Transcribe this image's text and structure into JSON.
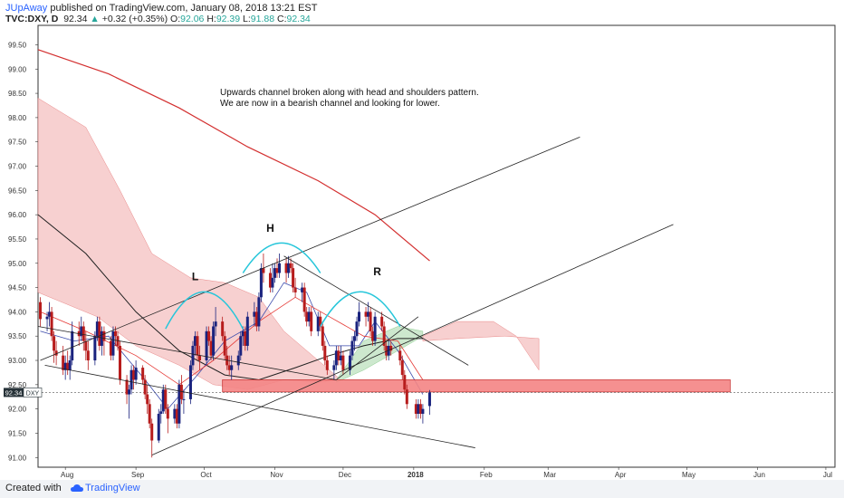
{
  "header": {
    "user": "JUpAway",
    "published_text": "published on TradingView.com, January 08, 2018 13:21 EST",
    "symbol": "TVC:DXY, D",
    "price": "92.34",
    "change": "+0.32 (+0.35%)",
    "o_label": "O:",
    "o_value": "92.06",
    "h_label": "H:",
    "h_value": "92.39",
    "l_label": "L:",
    "l_value": "91.88",
    "c_label": "C:",
    "c_value": "92.34"
  },
  "footer": {
    "created_with": "Created with",
    "brand": "TradingView"
  },
  "chart_data": {
    "type": "candlestick",
    "symbol": "TVC:DXY",
    "interval": "D",
    "price_label": "92.34",
    "price_tag": "DXY",
    "annotation": [
      "Upwards channel broken along with head and shoulders pattern.",
      "We are now in a bearish channel and looking for lower."
    ],
    "pattern_labels": [
      "L",
      "H",
      "R"
    ],
    "yticks": [
      "99.50",
      "99.00",
      "98.50",
      "98.00",
      "97.50",
      "97.00",
      "96.50",
      "96.00",
      "95.50",
      "95.00",
      "94.50",
      "94.00",
      "93.50",
      "93.00",
      "92.50",
      "92.00",
      "91.50",
      "91.00"
    ],
    "xticks": [
      "Aug",
      "Sep",
      "Oct",
      "Nov",
      "Dec",
      "2018",
      "Feb",
      "Mar",
      "Apr",
      "May",
      "Jun",
      "Jul"
    ],
    "ylim": [
      90.8,
      99.9
    ],
    "last_price": 92.34,
    "support_zone": [
      92.35,
      92.6
    ],
    "x_range": [
      "2017-07-20",
      "2018-07-05"
    ],
    "candles": [
      {
        "date": "2017-07-21",
        "o": 94.2,
        "h": 94.3,
        "l": 93.7,
        "c": 93.85
      },
      {
        "date": "2017-07-24",
        "o": 93.85,
        "h": 94.0,
        "l": 93.6,
        "c": 93.9
      },
      {
        "date": "2017-07-25",
        "o": 93.9,
        "h": 94.2,
        "l": 93.7,
        "c": 94.0
      },
      {
        "date": "2017-07-26",
        "o": 94.0,
        "h": 94.1,
        "l": 93.4,
        "c": 93.5
      },
      {
        "date": "2017-07-27",
        "o": 93.5,
        "h": 93.6,
        "l": 92.95,
        "c": 93.2
      },
      {
        "date": "2017-07-28",
        "o": 93.2,
        "h": 93.4,
        "l": 92.9,
        "c": 93.1
      },
      {
        "date": "2017-07-31",
        "o": 93.1,
        "h": 93.3,
        "l": 92.7,
        "c": 92.8
      },
      {
        "date": "2017-08-01",
        "o": 92.8,
        "h": 93.1,
        "l": 92.6,
        "c": 92.95
      },
      {
        "date": "2017-08-02",
        "o": 92.95,
        "h": 93.2,
        "l": 92.7,
        "c": 92.8
      },
      {
        "date": "2017-08-03",
        "o": 92.8,
        "h": 93.1,
        "l": 92.6,
        "c": 93.0
      },
      {
        "date": "2017-08-04",
        "o": 93.0,
        "h": 93.8,
        "l": 92.9,
        "c": 93.6
      },
      {
        "date": "2017-08-07",
        "o": 93.6,
        "h": 93.8,
        "l": 93.3,
        "c": 93.5
      },
      {
        "date": "2017-08-08",
        "o": 93.5,
        "h": 93.9,
        "l": 93.4,
        "c": 93.7
      },
      {
        "date": "2017-08-09",
        "o": 93.7,
        "h": 93.8,
        "l": 93.2,
        "c": 93.4
      },
      {
        "date": "2017-08-10",
        "o": 93.4,
        "h": 93.6,
        "l": 93.0,
        "c": 93.2
      },
      {
        "date": "2017-08-11",
        "o": 93.2,
        "h": 93.4,
        "l": 92.8,
        "c": 93.0
      },
      {
        "date": "2017-08-14",
        "o": 93.0,
        "h": 93.6,
        "l": 92.9,
        "c": 93.5
      },
      {
        "date": "2017-08-15",
        "o": 93.5,
        "h": 93.9,
        "l": 93.4,
        "c": 93.8
      },
      {
        "date": "2017-08-16",
        "o": 93.8,
        "h": 93.9,
        "l": 93.2,
        "c": 93.3
      },
      {
        "date": "2017-08-17",
        "o": 93.3,
        "h": 93.7,
        "l": 93.1,
        "c": 93.6
      },
      {
        "date": "2017-08-18",
        "o": 93.6,
        "h": 93.7,
        "l": 93.1,
        "c": 93.4
      },
      {
        "date": "2017-08-21",
        "o": 93.4,
        "h": 93.5,
        "l": 93.0,
        "c": 93.1
      },
      {
        "date": "2017-08-22",
        "o": 93.1,
        "h": 93.7,
        "l": 93.0,
        "c": 93.6
      },
      {
        "date": "2017-08-23",
        "o": 93.6,
        "h": 93.7,
        "l": 93.3,
        "c": 93.5
      },
      {
        "date": "2017-08-24",
        "o": 93.5,
        "h": 93.6,
        "l": 93.2,
        "c": 93.3
      },
      {
        "date": "2017-08-25",
        "o": 93.3,
        "h": 93.4,
        "l": 92.5,
        "c": 92.6
      },
      {
        "date": "2017-08-28",
        "o": 92.6,
        "h": 92.7,
        "l": 92.1,
        "c": 92.3
      },
      {
        "date": "2017-08-29",
        "o": 92.3,
        "h": 92.5,
        "l": 91.8,
        "c": 92.4
      },
      {
        "date": "2017-08-30",
        "o": 92.4,
        "h": 92.9,
        "l": 92.3,
        "c": 92.8
      },
      {
        "date": "2017-08-31",
        "o": 92.8,
        "h": 92.9,
        "l": 92.4,
        "c": 92.6
      },
      {
        "date": "2017-09-01",
        "o": 92.6,
        "h": 93.0,
        "l": 92.5,
        "c": 92.85
      },
      {
        "date": "2017-09-04",
        "o": 92.85,
        "h": 92.9,
        "l": 92.5,
        "c": 92.6
      },
      {
        "date": "2017-09-05",
        "o": 92.6,
        "h": 92.7,
        "l": 92.2,
        "c": 92.3
      },
      {
        "date": "2017-09-06",
        "o": 92.3,
        "h": 92.5,
        "l": 91.9,
        "c": 92.1
      },
      {
        "date": "2017-09-07",
        "o": 92.1,
        "h": 92.2,
        "l": 91.6,
        "c": 91.7
      },
      {
        "date": "2017-09-08",
        "o": 91.7,
        "h": 91.8,
        "l": 91.0,
        "c": 91.35
      },
      {
        "date": "2017-09-11",
        "o": 91.35,
        "h": 92.0,
        "l": 91.3,
        "c": 91.9
      },
      {
        "date": "2017-09-12",
        "o": 91.9,
        "h": 92.1,
        "l": 91.7,
        "c": 91.95
      },
      {
        "date": "2017-09-13",
        "o": 91.95,
        "h": 92.5,
        "l": 91.9,
        "c": 92.4
      },
      {
        "date": "2017-09-14",
        "o": 92.4,
        "h": 92.5,
        "l": 91.9,
        "c": 92.0
      },
      {
        "date": "2017-09-15",
        "o": 92.0,
        "h": 92.1,
        "l": 91.5,
        "c": 91.8
      },
      {
        "date": "2017-09-18",
        "o": 91.8,
        "h": 92.1,
        "l": 91.7,
        "c": 92.0
      },
      {
        "date": "2017-09-19",
        "o": 92.0,
        "h": 92.1,
        "l": 91.6,
        "c": 91.7
      },
      {
        "date": "2017-09-20",
        "o": 91.7,
        "h": 92.6,
        "l": 91.6,
        "c": 92.5
      },
      {
        "date": "2017-09-21",
        "o": 92.5,
        "h": 92.7,
        "l": 92.1,
        "c": 92.2
      },
      {
        "date": "2017-09-22",
        "o": 92.2,
        "h": 92.4,
        "l": 91.9,
        "c": 92.2
      },
      {
        "date": "2017-09-25",
        "o": 92.2,
        "h": 93.0,
        "l": 92.1,
        "c": 92.9
      },
      {
        "date": "2017-09-26",
        "o": 92.9,
        "h": 93.4,
        "l": 92.8,
        "c": 93.3
      },
      {
        "date": "2017-09-27",
        "o": 93.3,
        "h": 93.6,
        "l": 93.1,
        "c": 93.5
      },
      {
        "date": "2017-09-28",
        "o": 93.5,
        "h": 93.6,
        "l": 93.0,
        "c": 93.1
      },
      {
        "date": "2017-09-29",
        "o": 93.1,
        "h": 93.3,
        "l": 92.8,
        "c": 93.0
      },
      {
        "date": "2017-10-02",
        "o": 93.0,
        "h": 93.7,
        "l": 92.9,
        "c": 93.6
      },
      {
        "date": "2017-10-03",
        "o": 93.6,
        "h": 93.7,
        "l": 93.3,
        "c": 93.4
      },
      {
        "date": "2017-10-04",
        "o": 93.4,
        "h": 93.5,
        "l": 93.0,
        "c": 93.1
      },
      {
        "date": "2017-10-05",
        "o": 93.1,
        "h": 93.8,
        "l": 93.0,
        "c": 93.7
      },
      {
        "date": "2017-10-06",
        "o": 93.7,
        "h": 94.1,
        "l": 93.5,
        "c": 93.8
      },
      {
        "date": "2017-10-09",
        "o": 93.8,
        "h": 93.9,
        "l": 93.4,
        "c": 93.5
      },
      {
        "date": "2017-10-10",
        "o": 93.5,
        "h": 93.6,
        "l": 93.0,
        "c": 93.1
      },
      {
        "date": "2017-10-11",
        "o": 93.1,
        "h": 93.3,
        "l": 92.8,
        "c": 92.9
      },
      {
        "date": "2017-10-12",
        "o": 92.9,
        "h": 93.1,
        "l": 92.7,
        "c": 92.8
      },
      {
        "date": "2017-10-13",
        "o": 92.8,
        "h": 93.1,
        "l": 92.6,
        "c": 92.9
      },
      {
        "date": "2017-10-16",
        "o": 92.9,
        "h": 93.2,
        "l": 92.8,
        "c": 93.1
      },
      {
        "date": "2017-10-17",
        "o": 93.1,
        "h": 93.6,
        "l": 93.0,
        "c": 93.5
      },
      {
        "date": "2017-10-18",
        "o": 93.5,
        "h": 93.7,
        "l": 93.3,
        "c": 93.6
      },
      {
        "date": "2017-10-19",
        "o": 93.6,
        "h": 93.7,
        "l": 93.2,
        "c": 93.3
      },
      {
        "date": "2017-10-20",
        "o": 93.3,
        "h": 94.0,
        "l": 93.2,
        "c": 93.9
      },
      {
        "date": "2017-10-23",
        "o": 93.9,
        "h": 94.2,
        "l": 93.7,
        "c": 94.0
      },
      {
        "date": "2017-10-24",
        "o": 94.0,
        "h": 94.1,
        "l": 93.6,
        "c": 93.7
      },
      {
        "date": "2017-10-25",
        "o": 93.7,
        "h": 94.4,
        "l": 93.6,
        "c": 94.3
      },
      {
        "date": "2017-10-26",
        "o": 94.3,
        "h": 95.0,
        "l": 94.2,
        "c": 94.9
      },
      {
        "date": "2017-10-27",
        "o": 94.9,
        "h": 95.2,
        "l": 94.6,
        "c": 94.8
      },
      {
        "date": "2017-10-30",
        "o": 94.8,
        "h": 94.9,
        "l": 94.4,
        "c": 94.5
      },
      {
        "date": "2017-10-31",
        "o": 94.5,
        "h": 95.0,
        "l": 94.4,
        "c": 94.7
      },
      {
        "date": "2017-11-01",
        "o": 94.7,
        "h": 95.0,
        "l": 94.6,
        "c": 94.9
      },
      {
        "date": "2017-11-02",
        "o": 94.9,
        "h": 95.1,
        "l": 94.7,
        "c": 94.8
      },
      {
        "date": "2017-11-03",
        "o": 94.8,
        "h": 95.2,
        "l": 94.7,
        "c": 95.0
      },
      {
        "date": "2017-11-06",
        "o": 95.0,
        "h": 95.1,
        "l": 94.6,
        "c": 94.8
      },
      {
        "date": "2017-11-07",
        "o": 94.8,
        "h": 95.15,
        "l": 94.7,
        "c": 95.0
      },
      {
        "date": "2017-11-08",
        "o": 95.0,
        "h": 95.1,
        "l": 94.8,
        "c": 94.9
      },
      {
        "date": "2017-11-09",
        "o": 94.9,
        "h": 95.0,
        "l": 94.4,
        "c": 94.5
      },
      {
        "date": "2017-11-10",
        "o": 94.5,
        "h": 94.7,
        "l": 94.3,
        "c": 94.4
      },
      {
        "date": "2017-11-13",
        "o": 94.4,
        "h": 94.6,
        "l": 94.2,
        "c": 94.5
      },
      {
        "date": "2017-11-14",
        "o": 94.5,
        "h": 94.6,
        "l": 93.9,
        "c": 94.0
      },
      {
        "date": "2017-11-15",
        "o": 94.0,
        "h": 94.1,
        "l": 93.7,
        "c": 93.8
      },
      {
        "date": "2017-11-16",
        "o": 93.8,
        "h": 94.1,
        "l": 93.7,
        "c": 94.0
      },
      {
        "date": "2017-11-17",
        "o": 94.0,
        "h": 94.1,
        "l": 93.5,
        "c": 93.6
      },
      {
        "date": "2017-11-20",
        "o": 93.6,
        "h": 94.0,
        "l": 93.5,
        "c": 93.9
      },
      {
        "date": "2017-11-21",
        "o": 93.9,
        "h": 94.0,
        "l": 93.6,
        "c": 93.7
      },
      {
        "date": "2017-11-22",
        "o": 93.7,
        "h": 93.8,
        "l": 93.2,
        "c": 93.3
      },
      {
        "date": "2017-11-23",
        "o": 93.3,
        "h": 93.4,
        "l": 92.9,
        "c": 93.0
      },
      {
        "date": "2017-11-24",
        "o": 93.0,
        "h": 93.1,
        "l": 92.7,
        "c": 92.8
      },
      {
        "date": "2017-11-27",
        "o": 92.8,
        "h": 93.0,
        "l": 92.6,
        "c": 92.9
      },
      {
        "date": "2017-11-28",
        "o": 92.9,
        "h": 93.3,
        "l": 92.8,
        "c": 93.2
      },
      {
        "date": "2017-11-29",
        "o": 93.2,
        "h": 93.3,
        "l": 92.9,
        "c": 93.0
      },
      {
        "date": "2017-11-30",
        "o": 93.0,
        "h": 93.3,
        "l": 92.9,
        "c": 93.1
      },
      {
        "date": "2017-12-01",
        "o": 93.1,
        "h": 93.2,
        "l": 92.7,
        "c": 92.8
      },
      {
        "date": "2017-12-04",
        "o": 92.8,
        "h": 93.2,
        "l": 92.7,
        "c": 93.1
      },
      {
        "date": "2017-12-05",
        "o": 93.1,
        "h": 93.5,
        "l": 93.0,
        "c": 93.4
      },
      {
        "date": "2017-12-06",
        "o": 93.4,
        "h": 93.6,
        "l": 93.2,
        "c": 93.5
      },
      {
        "date": "2017-12-07",
        "o": 93.5,
        "h": 93.9,
        "l": 93.4,
        "c": 93.8
      },
      {
        "date": "2017-12-08",
        "o": 93.8,
        "h": 94.2,
        "l": 93.7,
        "c": 94.0
      },
      {
        "date": "2017-12-11",
        "o": 94.0,
        "h": 94.1,
        "l": 93.7,
        "c": 93.9
      },
      {
        "date": "2017-12-12",
        "o": 93.9,
        "h": 94.2,
        "l": 93.8,
        "c": 94.0
      },
      {
        "date": "2017-12-13",
        "o": 94.0,
        "h": 94.1,
        "l": 93.5,
        "c": 93.6
      },
      {
        "date": "2017-12-14",
        "o": 93.6,
        "h": 93.7,
        "l": 93.3,
        "c": 93.4
      },
      {
        "date": "2017-12-15",
        "o": 93.4,
        "h": 94.0,
        "l": 93.3,
        "c": 93.9
      },
      {
        "date": "2017-12-18",
        "o": 93.9,
        "h": 94.0,
        "l": 93.6,
        "c": 93.7
      },
      {
        "date": "2017-12-19",
        "o": 93.7,
        "h": 93.8,
        "l": 93.2,
        "c": 93.3
      },
      {
        "date": "2017-12-20",
        "o": 93.3,
        "h": 93.4,
        "l": 93.0,
        "c": 93.1
      },
      {
        "date": "2017-12-21",
        "o": 93.1,
        "h": 93.4,
        "l": 93.0,
        "c": 93.3
      },
      {
        "date": "2017-12-22",
        "o": 93.3,
        "h": 93.4,
        "l": 93.1,
        "c": 93.2
      },
      {
        "date": "2017-12-26",
        "o": 93.2,
        "h": 93.3,
        "l": 92.9,
        "c": 93.0
      },
      {
        "date": "2017-12-27",
        "o": 93.0,
        "h": 93.1,
        "l": 92.6,
        "c": 92.7
      },
      {
        "date": "2017-12-28",
        "o": 92.7,
        "h": 92.8,
        "l": 92.3,
        "c": 92.4
      },
      {
        "date": "2017-12-29",
        "o": 92.4,
        "h": 92.5,
        "l": 92.0,
        "c": 92.1
      },
      {
        "date": "2018-01-02",
        "o": 92.1,
        "h": 92.2,
        "l": 91.8,
        "c": 91.9
      },
      {
        "date": "2018-01-03",
        "o": 91.9,
        "h": 92.2,
        "l": 91.8,
        "c": 92.1
      },
      {
        "date": "2018-01-04",
        "o": 92.1,
        "h": 92.2,
        "l": 91.8,
        "c": 91.9
      },
      {
        "date": "2018-01-05",
        "o": 91.9,
        "h": 92.1,
        "l": 91.7,
        "c": 92.0
      },
      {
        "date": "2018-01-08",
        "o": 92.06,
        "h": 92.39,
        "l": 91.88,
        "c": 92.34
      }
    ]
  },
  "colors": {
    "up": "#1a237e",
    "down": "#b71c1c",
    "cloud_bear": "#f6c8c8",
    "cloud_bull": "#c8e6c9",
    "sma200": "#d32f2f",
    "sma50": "#212121",
    "tenkan": "#3949ab",
    "kijun": "#e53935",
    "hs_arc": "#26c6da",
    "zone": "#f48585",
    "zone_border": "#c62828"
  }
}
